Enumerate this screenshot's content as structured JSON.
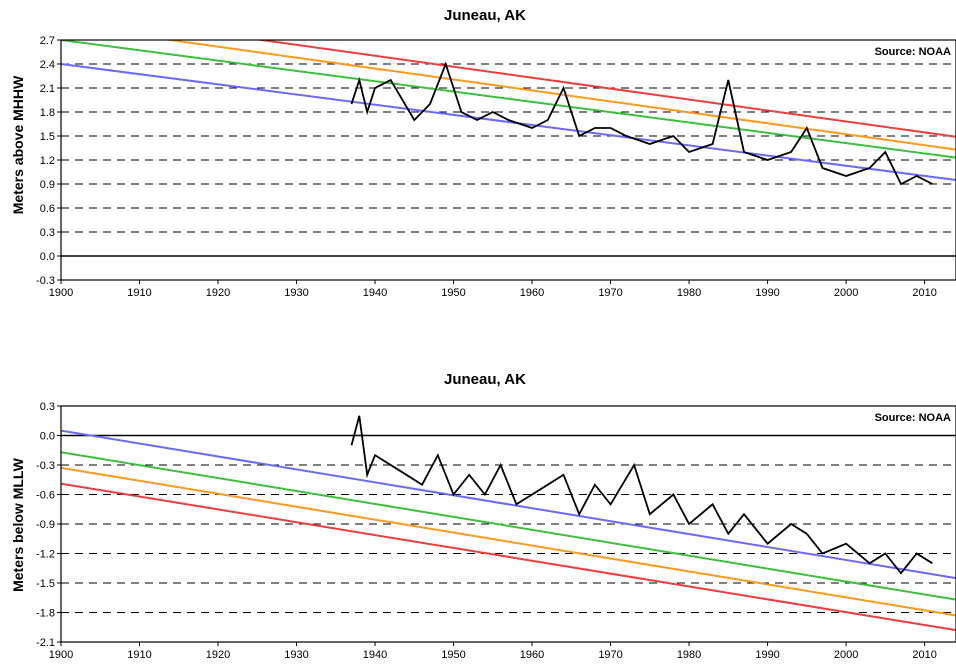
{
  "chart_data": [
    {
      "type": "line",
      "title": "Juneau, AK",
      "ylabel": "Meters above MHHW",
      "source": "Source: NOAA",
      "xlim": [
        1900,
        2014
      ],
      "ylim": [
        -0.3,
        2.7
      ],
      "xticks": [
        1900,
        1910,
        1920,
        1930,
        1940,
        1950,
        1960,
        1970,
        1980,
        1990,
        2000,
        2010
      ],
      "yticks": [
        "2.7",
        "2.4",
        "2.1",
        "1.8",
        "1.5",
        "1.2",
        "0.9",
        "0.6",
        "0.3",
        "0.0",
        "-0.3"
      ],
      "grid": "dashed horizontal",
      "series": [
        {
          "color": "#f03c3c",
          "x": [
            1900,
            2014
          ],
          "y": [
            3.05,
            1.49
          ]
        },
        {
          "color": "#ff9a1a",
          "x": [
            1900,
            2014
          ],
          "y": [
            2.89,
            1.33
          ]
        },
        {
          "color": "#3cc03c",
          "x": [
            1900,
            2014
          ],
          "y": [
            2.7,
            1.23
          ]
        },
        {
          "color": "#6a6aff",
          "x": [
            1900,
            2014
          ],
          "y": [
            2.4,
            0.95
          ]
        },
        {
          "color": "#000000",
          "x": [
            1937,
            1938,
            1939,
            1940,
            1942,
            1945,
            1947,
            1949,
            1951,
            1953,
            1955,
            1957,
            1960,
            1962,
            1964,
            1966,
            1968,
            1970,
            1972,
            1975,
            1978,
            1980,
            1983,
            1985,
            1987,
            1990,
            1993,
            1995,
            1997,
            2000,
            2003,
            2005,
            2007,
            2009,
            2011
          ],
          "y": [
            1.9,
            2.2,
            1.8,
            2.1,
            2.2,
            1.7,
            1.9,
            2.4,
            1.8,
            1.7,
            1.8,
            1.7,
            1.6,
            1.7,
            2.1,
            1.5,
            1.6,
            1.6,
            1.5,
            1.4,
            1.5,
            1.3,
            1.4,
            2.2,
            1.3,
            1.2,
            1.3,
            1.6,
            1.1,
            1.0,
            1.1,
            1.3,
            0.9,
            1.0,
            0.9
          ]
        }
      ]
    },
    {
      "type": "line",
      "title": "Juneau, AK",
      "ylabel": "Meters below MLLW",
      "source": "Source: NOAA",
      "xlim": [
        1900,
        2014
      ],
      "ylim": [
        -2.1,
        0.3
      ],
      "xticks": [
        1900,
        1910,
        1920,
        1930,
        1940,
        1950,
        1960,
        1970,
        1980,
        1990,
        2000,
        2010
      ],
      "yticks": [
        "0.3",
        "0.0",
        "-0.3",
        "-0.6",
        "-0.9",
        "-1.2",
        "-1.5",
        "-1.8",
        "-2.1"
      ],
      "grid": "dashed horizontal",
      "series": [
        {
          "color": "#6a6aff",
          "x": [
            1900,
            2014
          ],
          "y": [
            0.05,
            -1.45
          ]
        },
        {
          "color": "#3cc03c",
          "x": [
            1900,
            2014
          ],
          "y": [
            -0.17,
            -1.67
          ]
        },
        {
          "color": "#ff9a1a",
          "x": [
            1900,
            2014
          ],
          "y": [
            -0.33,
            -1.83
          ]
        },
        {
          "color": "#f03c3c",
          "x": [
            1900,
            2014
          ],
          "y": [
            -0.49,
            -1.98
          ]
        },
        {
          "color": "#000000",
          "x": [
            1937,
            1938,
            1939,
            1940,
            1944,
            1946,
            1948,
            1950,
            1952,
            1954,
            1956,
            1958,
            1960,
            1962,
            1964,
            1966,
            1968,
            1970,
            1973,
            1975,
            1978,
            1980,
            1983,
            1985,
            1987,
            1990,
            1993,
            1995,
            1997,
            2000,
            2003,
            2005,
            2007,
            2009,
            2011
          ],
          "y": [
            -0.1,
            0.2,
            -0.4,
            -0.2,
            -0.4,
            -0.5,
            -0.2,
            -0.6,
            -0.4,
            -0.6,
            -0.3,
            -0.7,
            -0.6,
            -0.5,
            -0.4,
            -0.8,
            -0.5,
            -0.7,
            -0.3,
            -0.8,
            -0.6,
            -0.9,
            -0.7,
            -1.0,
            -0.8,
            -1.1,
            -0.9,
            -1.0,
            -1.2,
            -1.1,
            -1.3,
            -1.2,
            -1.4,
            -1.2,
            -1.3
          ]
        }
      ]
    }
  ]
}
